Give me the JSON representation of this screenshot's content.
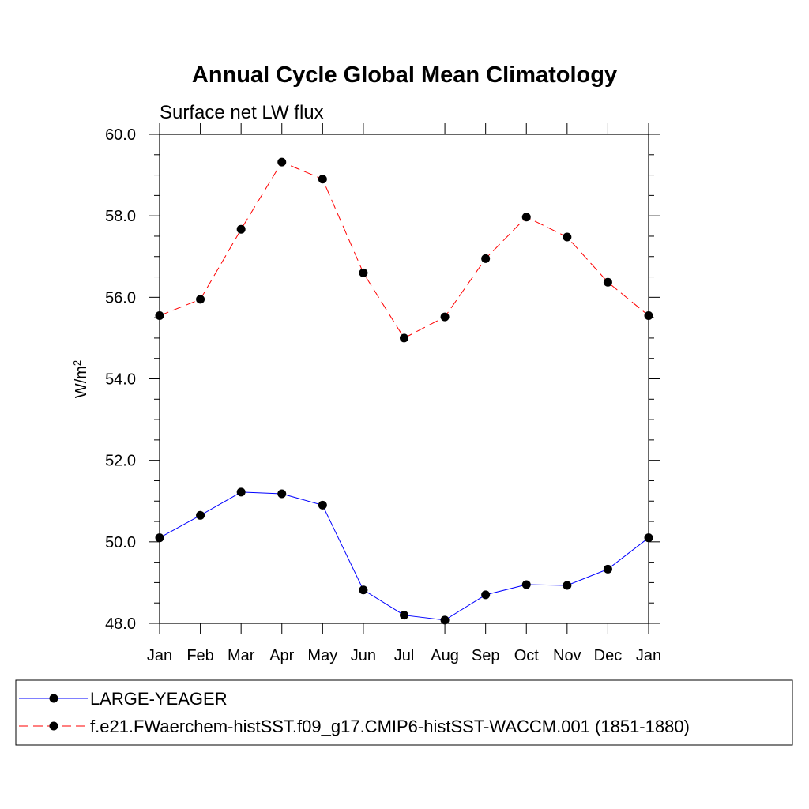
{
  "chart_data": {
    "type": "line",
    "title": "Annual Cycle Global Mean Climatology",
    "subtitle": "Surface net LW flux",
    "ylabel": "W/m",
    "ylabel_superscript": "2",
    "xlabel": "",
    "ylim": [
      48.0,
      60.0
    ],
    "y_ticks": [
      "48.0",
      "50.0",
      "52.0",
      "54.0",
      "56.0",
      "58.0",
      "60.0"
    ],
    "y_tick_values": [
      48,
      50,
      52,
      54,
      56,
      58,
      60
    ],
    "categories": [
      "Jan",
      "Feb",
      "Mar",
      "Apr",
      "May",
      "Jun",
      "Jul",
      "Aug",
      "Sep",
      "Oct",
      "Nov",
      "Dec",
      "Jan"
    ],
    "grid": false,
    "legend_position": "bottom",
    "series": [
      {
        "name": "LARGE-YEAGER",
        "color": "#0000ff",
        "dash": "solid",
        "marker": "filled-circle",
        "values": [
          50.1,
          50.65,
          51.22,
          51.18,
          50.9,
          48.82,
          48.2,
          48.08,
          48.7,
          48.95,
          48.93,
          49.33,
          50.1
        ]
      },
      {
        "name": "f.e21.FWaerchem-histSST.f09_g17.CMIP6-histSST-WACCM.001 (1851-1880)",
        "color": "#ff0000",
        "dash": "dashed",
        "marker": "filled-circle",
        "values": [
          55.55,
          55.95,
          57.67,
          59.32,
          58.9,
          56.6,
          55.0,
          55.52,
          56.95,
          57.97,
          57.48,
          56.37,
          55.55
        ]
      }
    ]
  }
}
